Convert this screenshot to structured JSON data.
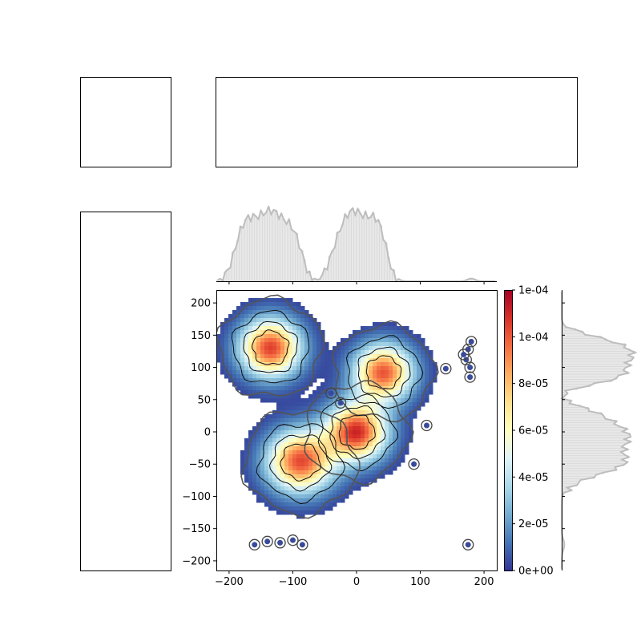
{
  "chart_data": [
    {
      "id": "empty-top-left",
      "type": "empty"
    },
    {
      "id": "empty-top-wide",
      "type": "empty"
    },
    {
      "id": "empty-left-tall",
      "type": "empty"
    },
    {
      "id": "marginal-x",
      "type": "histogram",
      "orientation": "vertical",
      "xlim": [
        -220,
        220
      ],
      "ticks": [
        -200,
        -100,
        0,
        100,
        200
      ],
      "peaks": [
        {
          "center": -140,
          "width": 55,
          "height": 1.0
        },
        {
          "center": 5,
          "width": 45,
          "height": 1.0
        }
      ],
      "extra_lumps": [
        {
          "center": 180,
          "width": 6,
          "height": 0.04
        }
      ],
      "line_color": "#bdbdbd",
      "fill_color": "#e8e8e8"
    },
    {
      "id": "density-2d",
      "type": "heatmap",
      "subtype": "2d-density-contour",
      "xlim": [
        -220,
        220
      ],
      "ylim": [
        -215,
        220
      ],
      "xticks": [
        -200,
        -100,
        0,
        100,
        200
      ],
      "yticks": [
        -200,
        -150,
        -100,
        -50,
        0,
        50,
        100,
        150,
        200
      ],
      "xlabel": "",
      "ylabel": "",
      "clusters": [
        {
          "x": -135,
          "y": 130,
          "sx": 33,
          "sy": 31,
          "peak": 9.6e-05
        },
        {
          "x": 42,
          "y": 92,
          "sx": 32,
          "sy": 30,
          "peak": 9.2e-05
        },
        {
          "x": 0,
          "y": 0,
          "sx": 33,
          "sy": 31,
          "peak": 0.0001
        },
        {
          "x": -88,
          "y": -46,
          "sx": 36,
          "sy": 33,
          "peak": 9.4e-05
        }
      ],
      "sparse_points": [
        [
          175,
          128
        ],
        [
          172,
          112
        ],
        [
          168,
          120
        ],
        [
          180,
          140
        ],
        [
          178,
          100
        ],
        [
          140,
          98
        ],
        [
          -160,
          -175
        ],
        [
          -140,
          -170
        ],
        [
          -120,
          -172
        ],
        [
          -100,
          -168
        ],
        [
          -85,
          -175
        ],
        [
          175,
          -175
        ],
        [
          178,
          85
        ],
        [
          -40,
          60
        ],
        [
          -25,
          45
        ],
        [
          110,
          10
        ],
        [
          90,
          -50
        ]
      ],
      "colormap": [
        "#313695",
        "#4575b4",
        "#74add1",
        "#abd9e9",
        "#e0f3f8",
        "#ffffbf",
        "#fee090",
        "#fdae61",
        "#f46d43",
        "#d73027",
        "#a50026"
      ],
      "colorbar": {
        "vmin": 0,
        "vmax": 0.00011,
        "ticks": [
          {
            "value": 0,
            "label": "0e+00"
          },
          {
            "value": 2e-05,
            "label": "2e-05"
          },
          {
            "value": 4e-05,
            "label": "4e-05"
          },
          {
            "value": 6e-05,
            "label": "6e-05"
          },
          {
            "value": 8e-05,
            "label": "8e-05"
          },
          {
            "value": 0.0001,
            "label": "1e-04"
          },
          {
            "value": 0.00012,
            "label": "1e-04"
          }
        ]
      }
    },
    {
      "id": "marginal-y",
      "type": "histogram",
      "orientation": "horizontal",
      "ylim": [
        -215,
        220
      ],
      "peaks": [
        {
          "center": 112,
          "width": 40,
          "height": 1.0
        },
        {
          "center": -20,
          "width": 55,
          "height": 0.95
        }
      ],
      "extra_lumps": [
        {
          "center": -175,
          "width": 8,
          "height": 0.04
        }
      ],
      "line_color": "#bdbdbd",
      "fill_color": "#e8e8e8"
    }
  ]
}
